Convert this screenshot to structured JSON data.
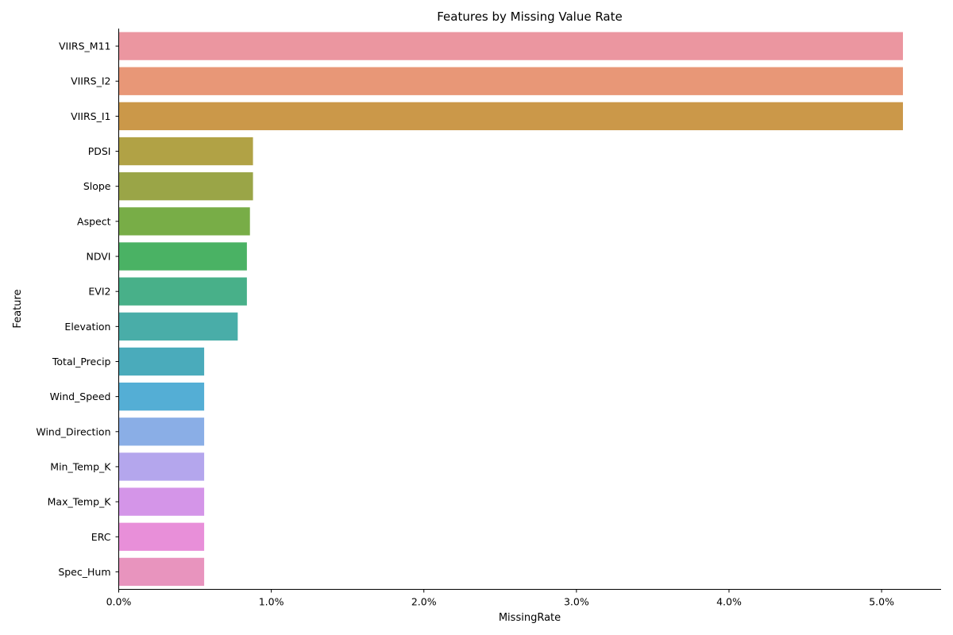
{
  "chart_data": {
    "type": "bar",
    "orientation": "horizontal",
    "title": "Features by Missing Value Rate",
    "xlabel": "MissingRate",
    "ylabel": "Feature",
    "xlim": [
      0,
      5.39
    ],
    "x_ticks": [
      0,
      1,
      2,
      3,
      4,
      5
    ],
    "x_tick_labels": [
      "0.0%",
      "1.0%",
      "2.0%",
      "3.0%",
      "4.0%",
      "5.0%"
    ],
    "unit": "%",
    "grid": false,
    "categories": [
      "VIIRS_M11",
      "VIIRS_I2",
      "VIIRS_I1",
      "PDSI",
      "Slope",
      "Aspect",
      "NDVI",
      "EVI2",
      "Elevation",
      "Total_Precip",
      "Wind_Speed",
      "Wind_Direction",
      "Min_Temp_K",
      "Max_Temp_K",
      "ERC",
      "Spec_Hum"
    ],
    "values": [
      5.14,
      5.14,
      5.14,
      0.88,
      0.88,
      0.86,
      0.84,
      0.84,
      0.78,
      0.56,
      0.56,
      0.56,
      0.56,
      0.56,
      0.56,
      0.56
    ],
    "colors": [
      "#eb96a0",
      "#e89777",
      "#cb9849",
      "#b1a245",
      "#9aa547",
      "#78ad47",
      "#4ab264",
      "#48b089",
      "#49ada8",
      "#4aabbb",
      "#54aed5",
      "#8aaee6",
      "#b4a6ed",
      "#d495e8",
      "#e88fd9",
      "#e894be"
    ]
  }
}
